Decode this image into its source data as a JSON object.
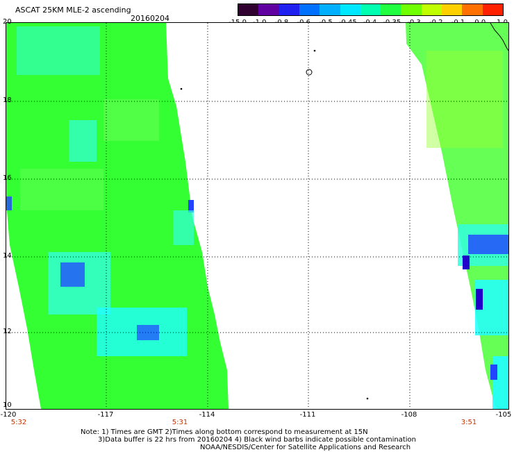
{
  "header": {
    "title": "ASCAT 25KM MLE-2 ascending",
    "date": "20160204"
  },
  "colorbar": {
    "labels": [
      "-15.0",
      "-1.0",
      "-0.8",
      "-0.6",
      "-0.5",
      "-0.45",
      "-0.4",
      "-0.35",
      "-0.3",
      "-0.2",
      "-0.1",
      "0.0",
      "1.0"
    ],
    "colors": [
      "#300030",
      "#6000a0",
      "#2020f0",
      "#0070ff",
      "#00b0ff",
      "#00e8ff",
      "#00ffb0",
      "#20ff40",
      "#70ff00",
      "#c0ff00",
      "#ffd000",
      "#ff7000",
      "#ff2000"
    ]
  },
  "map": {
    "latitude_labels": [
      "20",
      "18",
      "16",
      "14",
      "12",
      "10"
    ],
    "longitude_labels": [
      "-120",
      "-117",
      "-114",
      "-111",
      "-108",
      "-105"
    ],
    "time_labels": [
      "5:32",
      "5:31",
      "3:51"
    ],
    "swath_colors": {
      "green": "#33ff33",
      "light_green": "#66ff55",
      "cyan": "#33ffdd",
      "aqua": "#22ffff",
      "blue": "#2244ff",
      "dark_blue": "#2200cc",
      "yellow_green": "#99ff33"
    }
  },
  "footer": {
    "note_line1": "Note: 1) Times are GMT 2)Times along bottom correspond to measurement at 15N",
    "note_line2": "3)Data buffer is 22 hrs from 20160204 4) Black wind barbs indicate possible contamination",
    "credit": "NOAA/NESDIS/Center for Satellite Applications and Research"
  }
}
